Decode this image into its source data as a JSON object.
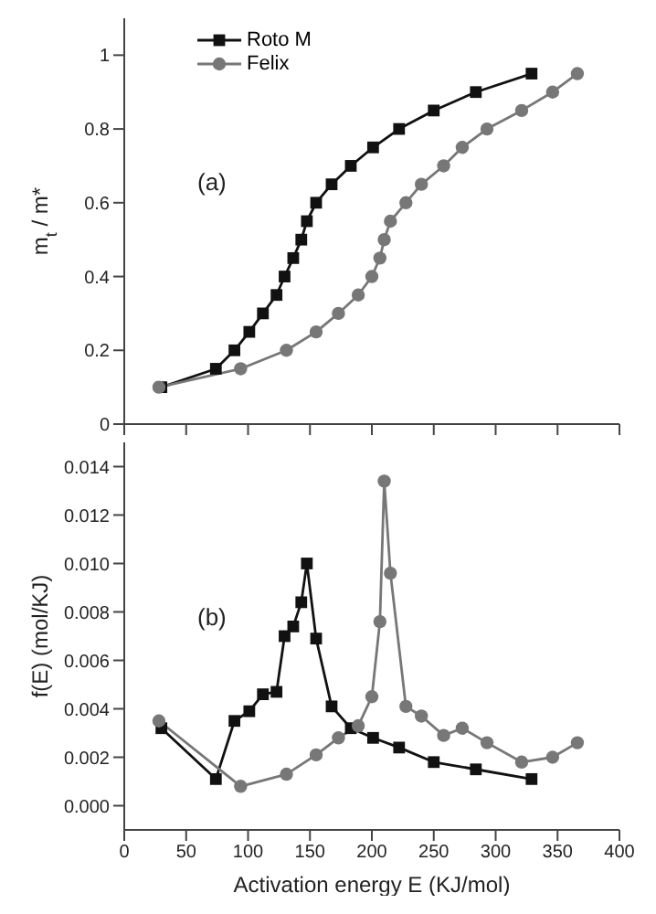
{
  "chart_data": [
    {
      "type": "line",
      "ylabel": "m$_{t}$ / m*",
      "annotations": [
        "(a)"
      ],
      "xlim": [
        0,
        400
      ],
      "xticks": [
        0,
        50,
        100,
        150,
        200,
        250,
        300,
        350,
        400
      ],
      "ylim": [
        0,
        1.1
      ],
      "yticks": [
        0.0,
        0.2,
        0.4,
        0.6,
        0.8,
        1.0
      ],
      "tick_labels": "y",
      "legend": "top left",
      "series": [
        {
          "name": "Roto M",
          "color": "#111111",
          "marker": "square",
          "x": [
            30,
            74,
            89,
            101,
            112,
            123,
            129.5,
            136.5,
            143,
            147.5,
            155,
            167.5,
            183,
            201,
            222,
            250,
            284,
            329
          ],
          "values": [
            0.1,
            0.15,
            0.2,
            0.25,
            0.3,
            0.35,
            0.4,
            0.45,
            0.5,
            0.55,
            0.6,
            0.65,
            0.7,
            0.75,
            0.8,
            0.85,
            0.9,
            0.95
          ]
        },
        {
          "name": "Felix",
          "color": "#777777",
          "marker": "circle",
          "x": [
            28,
            94,
            131,
            155,
            173,
            189,
            200,
            206.5,
            210,
            215,
            227.5,
            240,
            258,
            273,
            293,
            321,
            346,
            366
          ],
          "values": [
            0.1,
            0.15,
            0.2,
            0.25,
            0.3,
            0.35,
            0.4,
            0.45,
            0.5,
            0.55,
            0.6,
            0.65,
            0.7,
            0.75,
            0.8,
            0.85,
            0.9,
            0.95
          ]
        }
      ]
    },
    {
      "type": "line",
      "xlabel": "Activation energy  E (KJ/mol)",
      "ylabel": "f(E) (mol/KJ)",
      "annotations": [
        "(b)"
      ],
      "xlim": [
        0,
        400
      ],
      "xticks": [
        0,
        50,
        100,
        150,
        200,
        250,
        300,
        350,
        400
      ],
      "ylim": [
        -0.001,
        0.015
      ],
      "yticks": [
        {
          "value": 0,
          "label": "0.000"
        },
        {
          "value": 0.002,
          "label": "0.002"
        },
        {
          "value": 0.004,
          "label": "0.004"
        },
        {
          "value": 0.006,
          "label": "0.006"
        },
        {
          "value": 0.008,
          "label": "0.008"
        },
        {
          "value": 0.01,
          "label": "0.010"
        },
        {
          "value": 0.012,
          "label": "0.012"
        },
        {
          "value": 0.014,
          "label": "0.014"
        }
      ],
      "series": [
        {
          "color": "#111111",
          "marker": "square",
          "x": [
            30,
            74,
            89,
            101,
            112,
            123,
            129.5,
            136.5,
            143,
            147.5,
            155,
            167.5,
            183,
            201,
            222,
            250,
            284,
            329
          ],
          "values": [
            0.0032,
            0.0011,
            0.0035,
            0.0039,
            0.0046,
            0.0047,
            0.007,
            0.0074,
            0.0084,
            0.01,
            0.0069,
            0.0041,
            0.0032,
            0.0028,
            0.0024,
            0.0018,
            0.0015,
            0.0011
          ]
        },
        {
          "color": "#777777",
          "marker": "circle",
          "x": [
            28,
            94,
            131,
            155,
            173,
            189,
            200,
            206.5,
            210,
            215,
            227.5,
            240,
            258,
            273,
            293,
            321,
            346,
            366
          ],
          "values": [
            0.0035,
            0.0008,
            0.0013,
            0.0021,
            0.0028,
            0.0033,
            0.0045,
            0.0076,
            0.0134,
            0.0096,
            0.0041,
            0.0037,
            0.0029,
            0.0032,
            0.0026,
            0.0018,
            0.002,
            0.0026
          ]
        }
      ]
    }
  ]
}
